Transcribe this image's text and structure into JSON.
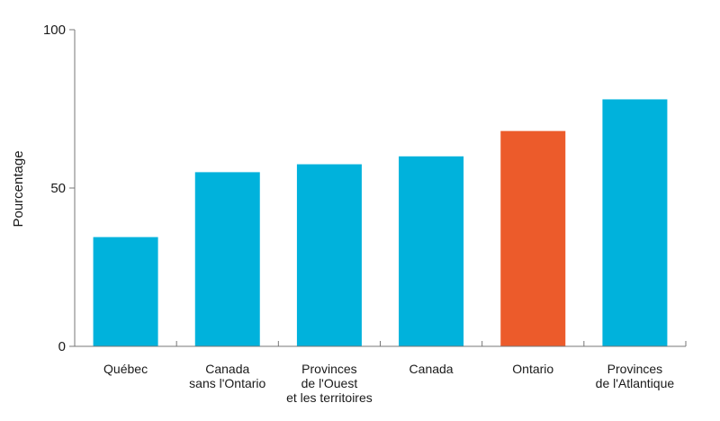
{
  "chart_data": {
    "type": "bar",
    "title": "",
    "xlabel": "",
    "ylabel": "Pourcentage",
    "ylim": [
      0,
      100
    ],
    "yticks": [
      0,
      50,
      100
    ],
    "grid": false,
    "categories": [
      [
        "Québec"
      ],
      [
        "Canada",
        "sans l'Ontario"
      ],
      [
        "Provinces",
        "de l'Ouest",
        "et les territoires"
      ],
      [
        "Canada"
      ],
      [
        "Ontario"
      ],
      [
        "Provinces",
        "de l'Atlantique"
      ]
    ],
    "values": [
      34.5,
      55,
      57.5,
      60,
      68,
      78
    ],
    "highlight_index": 4,
    "colors": {
      "default": "#00b2dc",
      "highlight": "#ec5b2b",
      "axis": "#777777"
    }
  }
}
